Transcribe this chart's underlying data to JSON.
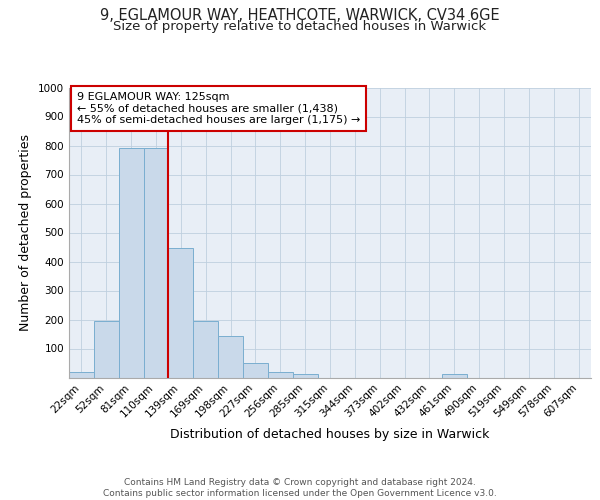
{
  "title_line1": "9, EGLAMOUR WAY, HEATHCOTE, WARWICK, CV34 6GE",
  "title_line2": "Size of property relative to detached houses in Warwick",
  "xlabel": "Distribution of detached houses by size in Warwick",
  "ylabel": "Number of detached properties",
  "bar_labels": [
    "22sqm",
    "52sqm",
    "81sqm",
    "110sqm",
    "139sqm",
    "169sqm",
    "198sqm",
    "227sqm",
    "256sqm",
    "285sqm",
    "315sqm",
    "344sqm",
    "373sqm",
    "402sqm",
    "432sqm",
    "461sqm",
    "490sqm",
    "519sqm",
    "549sqm",
    "578sqm",
    "607sqm"
  ],
  "bar_values": [
    20,
    195,
    790,
    790,
    445,
    195,
    142,
    50,
    18,
    12,
    0,
    0,
    0,
    0,
    0,
    12,
    0,
    0,
    0,
    0,
    0
  ],
  "bar_color": "#c9d9ea",
  "bar_edge_color": "#7aaed0",
  "vline_x": 3.5,
  "vline_color": "#cc0000",
  "annotation_text": "9 EGLAMOUR WAY: 125sqm\n← 55% of detached houses are smaller (1,438)\n45% of semi-detached houses are larger (1,175) →",
  "annotation_box_color": "#ffffff",
  "annotation_box_edge": "#cc0000",
  "ylim": [
    0,
    1000
  ],
  "yticks": [
    0,
    100,
    200,
    300,
    400,
    500,
    600,
    700,
    800,
    900,
    1000
  ],
  "grid_color": "#bfcfdf",
  "bg_color": "#e8eef6",
  "footnote": "Contains HM Land Registry data © Crown copyright and database right 2024.\nContains public sector information licensed under the Open Government Licence v3.0.",
  "title_fontsize": 10.5,
  "subtitle_fontsize": 9.5,
  "axis_label_fontsize": 9,
  "tick_fontsize": 7.5,
  "annotation_fontsize": 8,
  "footnote_fontsize": 6.5
}
